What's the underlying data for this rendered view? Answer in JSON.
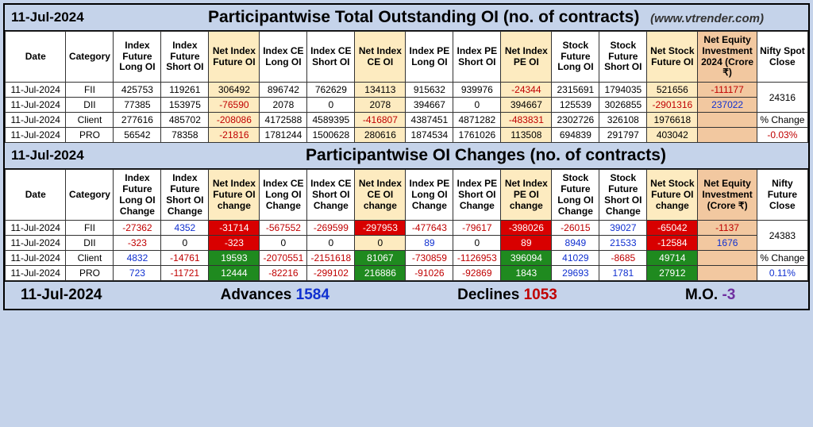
{
  "header1": {
    "date": "11-Jul-2024",
    "title": "Participantwise Total Outstanding OI (no. of contracts)",
    "site": "(www.vtrender.com)"
  },
  "headers": {
    "date": "Date",
    "category": "Category",
    "ifLong": "Index Future Long OI",
    "ifShort": "Index Future Short OI",
    "nif": "Net Index Future OI",
    "iceLong": "Index CE Long OI",
    "iceShort": "Index CE Short OI",
    "nice": "Net Index CE OI",
    "ipeLong": "Index PE Long OI",
    "ipeShort": "Index PE Short OI",
    "nipe": "Net Index PE OI",
    "sfLong": "Stock Future Long OI",
    "sfShort": "Stock Future Short OI",
    "nsf": "Net Stock Future OI",
    "inv": "Net Equity Investment 2024 (Crore ₹)",
    "close": "Nifty Spot Close"
  },
  "table1": {
    "rows": [
      {
        "date": "11-Jul-2024",
        "cat": "FII",
        "ifl": "425753",
        "ifs": "119261",
        "nif": {
          "t": "306492"
        },
        "icel": "896742",
        "ices": "762629",
        "nice": {
          "t": "134113"
        },
        "ipel": "915632",
        "ipes": "939976",
        "nipe": {
          "t": "-24344",
          "cls": "neg"
        },
        "sfl": "2315691",
        "sfs": "1794035",
        "nsf": {
          "t": "521656"
        },
        "inv": {
          "t": "-111177",
          "cls": "neg"
        },
        "close": "24316"
      },
      {
        "date": "11-Jul-2024",
        "cat": "DII",
        "ifl": "77385",
        "ifs": "153975",
        "nif": {
          "t": "-76590",
          "cls": "neg"
        },
        "icel": "2078",
        "ices": "0",
        "nice": {
          "t": "2078"
        },
        "ipel": "394667",
        "ipes": "0",
        "nipe": {
          "t": "394667"
        },
        "sfl": "125539",
        "sfs": "3026855",
        "nsf": {
          "t": "-2901316",
          "cls": "neg"
        },
        "inv": {
          "t": "237022",
          "cls": "pos"
        },
        "close": ""
      },
      {
        "date": "11-Jul-2024",
        "cat": "Client",
        "ifl": "277616",
        "ifs": "485702",
        "nif": {
          "t": "-208086",
          "cls": "neg"
        },
        "icel": "4172588",
        "ices": "4589395",
        "nice": {
          "t": "-416807",
          "cls": "neg"
        },
        "ipel": "4387451",
        "ipes": "4871282",
        "nipe": {
          "t": "-483831",
          "cls": "neg"
        },
        "sfl": "2302726",
        "sfs": "326108",
        "nsf": {
          "t": "1976618"
        },
        "inv": {
          "t": ""
        },
        "close": "% Change"
      },
      {
        "date": "11-Jul-2024",
        "cat": "PRO",
        "ifl": "56542",
        "ifs": "78358",
        "nif": {
          "t": "-21816",
          "cls": "neg"
        },
        "icel": "1781244",
        "ices": "1500628",
        "nice": {
          "t": "280616"
        },
        "ipel": "1874534",
        "ipes": "1761026",
        "nipe": {
          "t": "113508"
        },
        "sfl": "694839",
        "sfs": "291797",
        "nsf": {
          "t": "403042"
        },
        "inv": {
          "t": ""
        },
        "close": ""
      }
    ],
    "pctChangeValue": {
      "t": "-0.03%",
      "cls": "neg"
    }
  },
  "header2": {
    "date": "11-Jul-2024",
    "title": "Participantwise OI Changes (no. of contracts)"
  },
  "headers2": {
    "date": "Date",
    "category": "Category",
    "ifLong": "Index Future Long OI Change",
    "ifShort": "Index Future Short OI Change",
    "nif": "Net Index Future OI change",
    "iceLong": "Index CE Long OI Change",
    "iceShort": "Index CE Short OI Change",
    "nice": "Net Index CE OI change",
    "ipeLong": "Index PE Long OI Change",
    "ipeShort": "Index PE Short OI Change",
    "nipe": "Net Index PE OI change",
    "sfLong": "Stock Future Long OI Change",
    "sfShort": "Stock Future Short OI Change",
    "nsf": "Net Stock Future OI change",
    "inv": "Net Equity Investment (Crore ₹)",
    "close": "Nifty Future Close"
  },
  "table2": {
    "rows": [
      {
        "date": "11-Jul-2024",
        "cat": "FII",
        "ifl": {
          "t": "-27362",
          "cls": "neg"
        },
        "ifs": {
          "t": "4352",
          "cls": "pos"
        },
        "nif": {
          "t": "-31714",
          "b": "rbg"
        },
        "icel": {
          "t": "-567552",
          "cls": "neg"
        },
        "ices": {
          "t": "-269599",
          "cls": "neg"
        },
        "nice": {
          "t": "-297953",
          "b": "rbg"
        },
        "ipel": {
          "t": "-477643",
          "cls": "neg"
        },
        "ipes": {
          "t": "-79617",
          "cls": "neg"
        },
        "nipe": {
          "t": "-398026",
          "b": "rbg"
        },
        "sfl": {
          "t": "-26015",
          "cls": "neg"
        },
        "sfs": {
          "t": "39027",
          "cls": "pos"
        },
        "nsf": {
          "t": "-65042",
          "b": "rbg"
        },
        "inv": {
          "t": "-1137",
          "cls": "neg"
        },
        "close": "24383"
      },
      {
        "date": "11-Jul-2024",
        "cat": "DII",
        "ifl": {
          "t": "-323",
          "cls": "neg"
        },
        "ifs": {
          "t": "0"
        },
        "nif": {
          "t": "-323",
          "b": "rbg"
        },
        "icel": {
          "t": "0"
        },
        "ices": {
          "t": "0"
        },
        "nice": {
          "t": "0",
          "b": "ybg"
        },
        "ipel": {
          "t": "89",
          "cls": "pos"
        },
        "ipes": {
          "t": "0"
        },
        "nipe": {
          "t": "89",
          "b": "rbg"
        },
        "sfl": {
          "t": "8949",
          "cls": "pos"
        },
        "sfs": {
          "t": "21533",
          "cls": "pos"
        },
        "nsf": {
          "t": "-12584",
          "b": "rbg"
        },
        "inv": {
          "t": "1676",
          "cls": "pos"
        },
        "close": ""
      },
      {
        "date": "11-Jul-2024",
        "cat": "Client",
        "ifl": {
          "t": "4832",
          "cls": "pos"
        },
        "ifs": {
          "t": "-14761",
          "cls": "neg"
        },
        "nif": {
          "t": "19593",
          "b": "gbg"
        },
        "icel": {
          "t": "-2070551",
          "cls": "neg"
        },
        "ices": {
          "t": "-2151618",
          "cls": "neg"
        },
        "nice": {
          "t": "81067",
          "b": "gbg"
        },
        "ipel": {
          "t": "-730859",
          "cls": "neg"
        },
        "ipes": {
          "t": "-1126953",
          "cls": "neg"
        },
        "nipe": {
          "t": "396094",
          "b": "gbg"
        },
        "sfl": {
          "t": "41029",
          "cls": "pos"
        },
        "sfs": {
          "t": "-8685",
          "cls": "neg"
        },
        "nsf": {
          "t": "49714",
          "b": "gbg"
        },
        "inv": {
          "t": ""
        },
        "close": "% Change"
      },
      {
        "date": "11-Jul-2024",
        "cat": "PRO",
        "ifl": {
          "t": "723",
          "cls": "pos"
        },
        "ifs": {
          "t": "-11721",
          "cls": "neg"
        },
        "nif": {
          "t": "12444",
          "b": "gbg"
        },
        "icel": {
          "t": "-82216",
          "cls": "neg"
        },
        "ices": {
          "t": "-299102",
          "cls": "neg"
        },
        "nice": {
          "t": "216886",
          "b": "gbg"
        },
        "ipel": {
          "t": "-91026",
          "cls": "neg"
        },
        "ipes": {
          "t": "-92869",
          "cls": "neg"
        },
        "nipe": {
          "t": "1843",
          "b": "gbg"
        },
        "sfl": {
          "t": "29693",
          "cls": "pos"
        },
        "sfs": {
          "t": "1781",
          "cls": "pos"
        },
        "nsf": {
          "t": "27912",
          "b": "gbg"
        },
        "inv": {
          "t": ""
        },
        "close": ""
      }
    ],
    "pctChangeValue": {
      "t": "0.11%",
      "cls": "pos"
    }
  },
  "footer": {
    "date": "11-Jul-2024",
    "advLabel": "Advances",
    "advVal": "1584",
    "decLabel": "Declines",
    "decVal": "1053",
    "moLabel": "M.O.",
    "moVal": "-3"
  },
  "colors": {
    "bg": "#c5d3ea",
    "hl": "#fdebc0",
    "inv": "#f2c8a0",
    "neg": "#c00000",
    "pos": "#1030d0",
    "gbg": "#1f8a1f",
    "rbg": "#d80000",
    "moColor": "#7030a0"
  }
}
